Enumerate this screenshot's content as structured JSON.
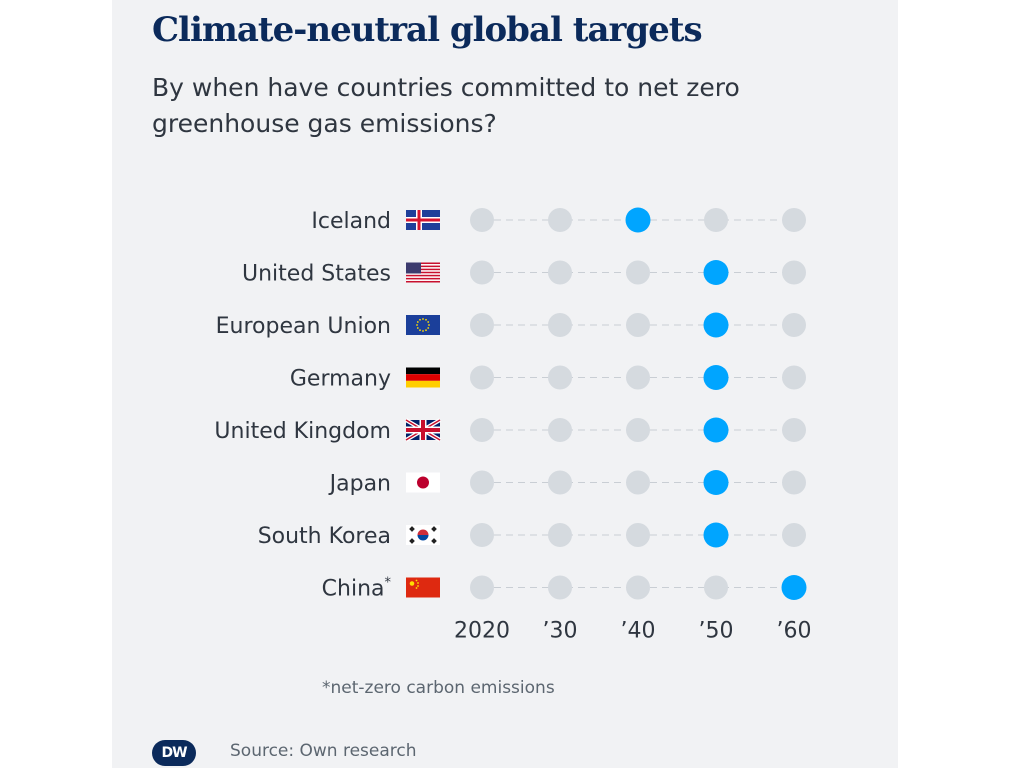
{
  "header": {
    "title": "Climate-neutral global targets",
    "subtitle": "By when have countries committed to net zero greenhouse gas emissions?"
  },
  "colors": {
    "highlight": "#00a5ff",
    "inactive": "#d5dadf",
    "title": "#0b2a5b",
    "text": "#2f3640"
  },
  "chart_data": {
    "type": "scatter",
    "title": "Climate-neutral global targets",
    "subtitle": "By when have countries committed to net zero greenhouse gas emissions?",
    "xlabel": "",
    "ylabel": "",
    "x_ticks": [
      2020,
      2030,
      2040,
      2050,
      2060
    ],
    "x_tick_labels": [
      "2020",
      "’30",
      "’40",
      "’50",
      "’60"
    ],
    "xlim": [
      2020,
      2060
    ],
    "categories": [
      "Iceland",
      "United States",
      "European Union",
      "Germany",
      "United Kingdom",
      "Japan",
      "South Korea",
      "China"
    ],
    "category_labels": [
      "Iceland",
      "United States",
      "European Union",
      "Germany",
      "United Kingdom",
      "Japan",
      "South Korea",
      "China*"
    ],
    "flag_icons": [
      "iceland-flag-icon",
      "usa-flag-icon",
      "eu-flag-icon",
      "germany-flag-icon",
      "uk-flag-icon",
      "japan-flag-icon",
      "south-korea-flag-icon",
      "china-flag-icon"
    ],
    "values": [
      2040,
      2050,
      2050,
      2050,
      2050,
      2050,
      2050,
      2060
    ],
    "grid": false,
    "legend": "none"
  },
  "footer": {
    "note": "*net-zero carbon emissions",
    "source": "Source: Own research",
    "logo": "DW"
  }
}
